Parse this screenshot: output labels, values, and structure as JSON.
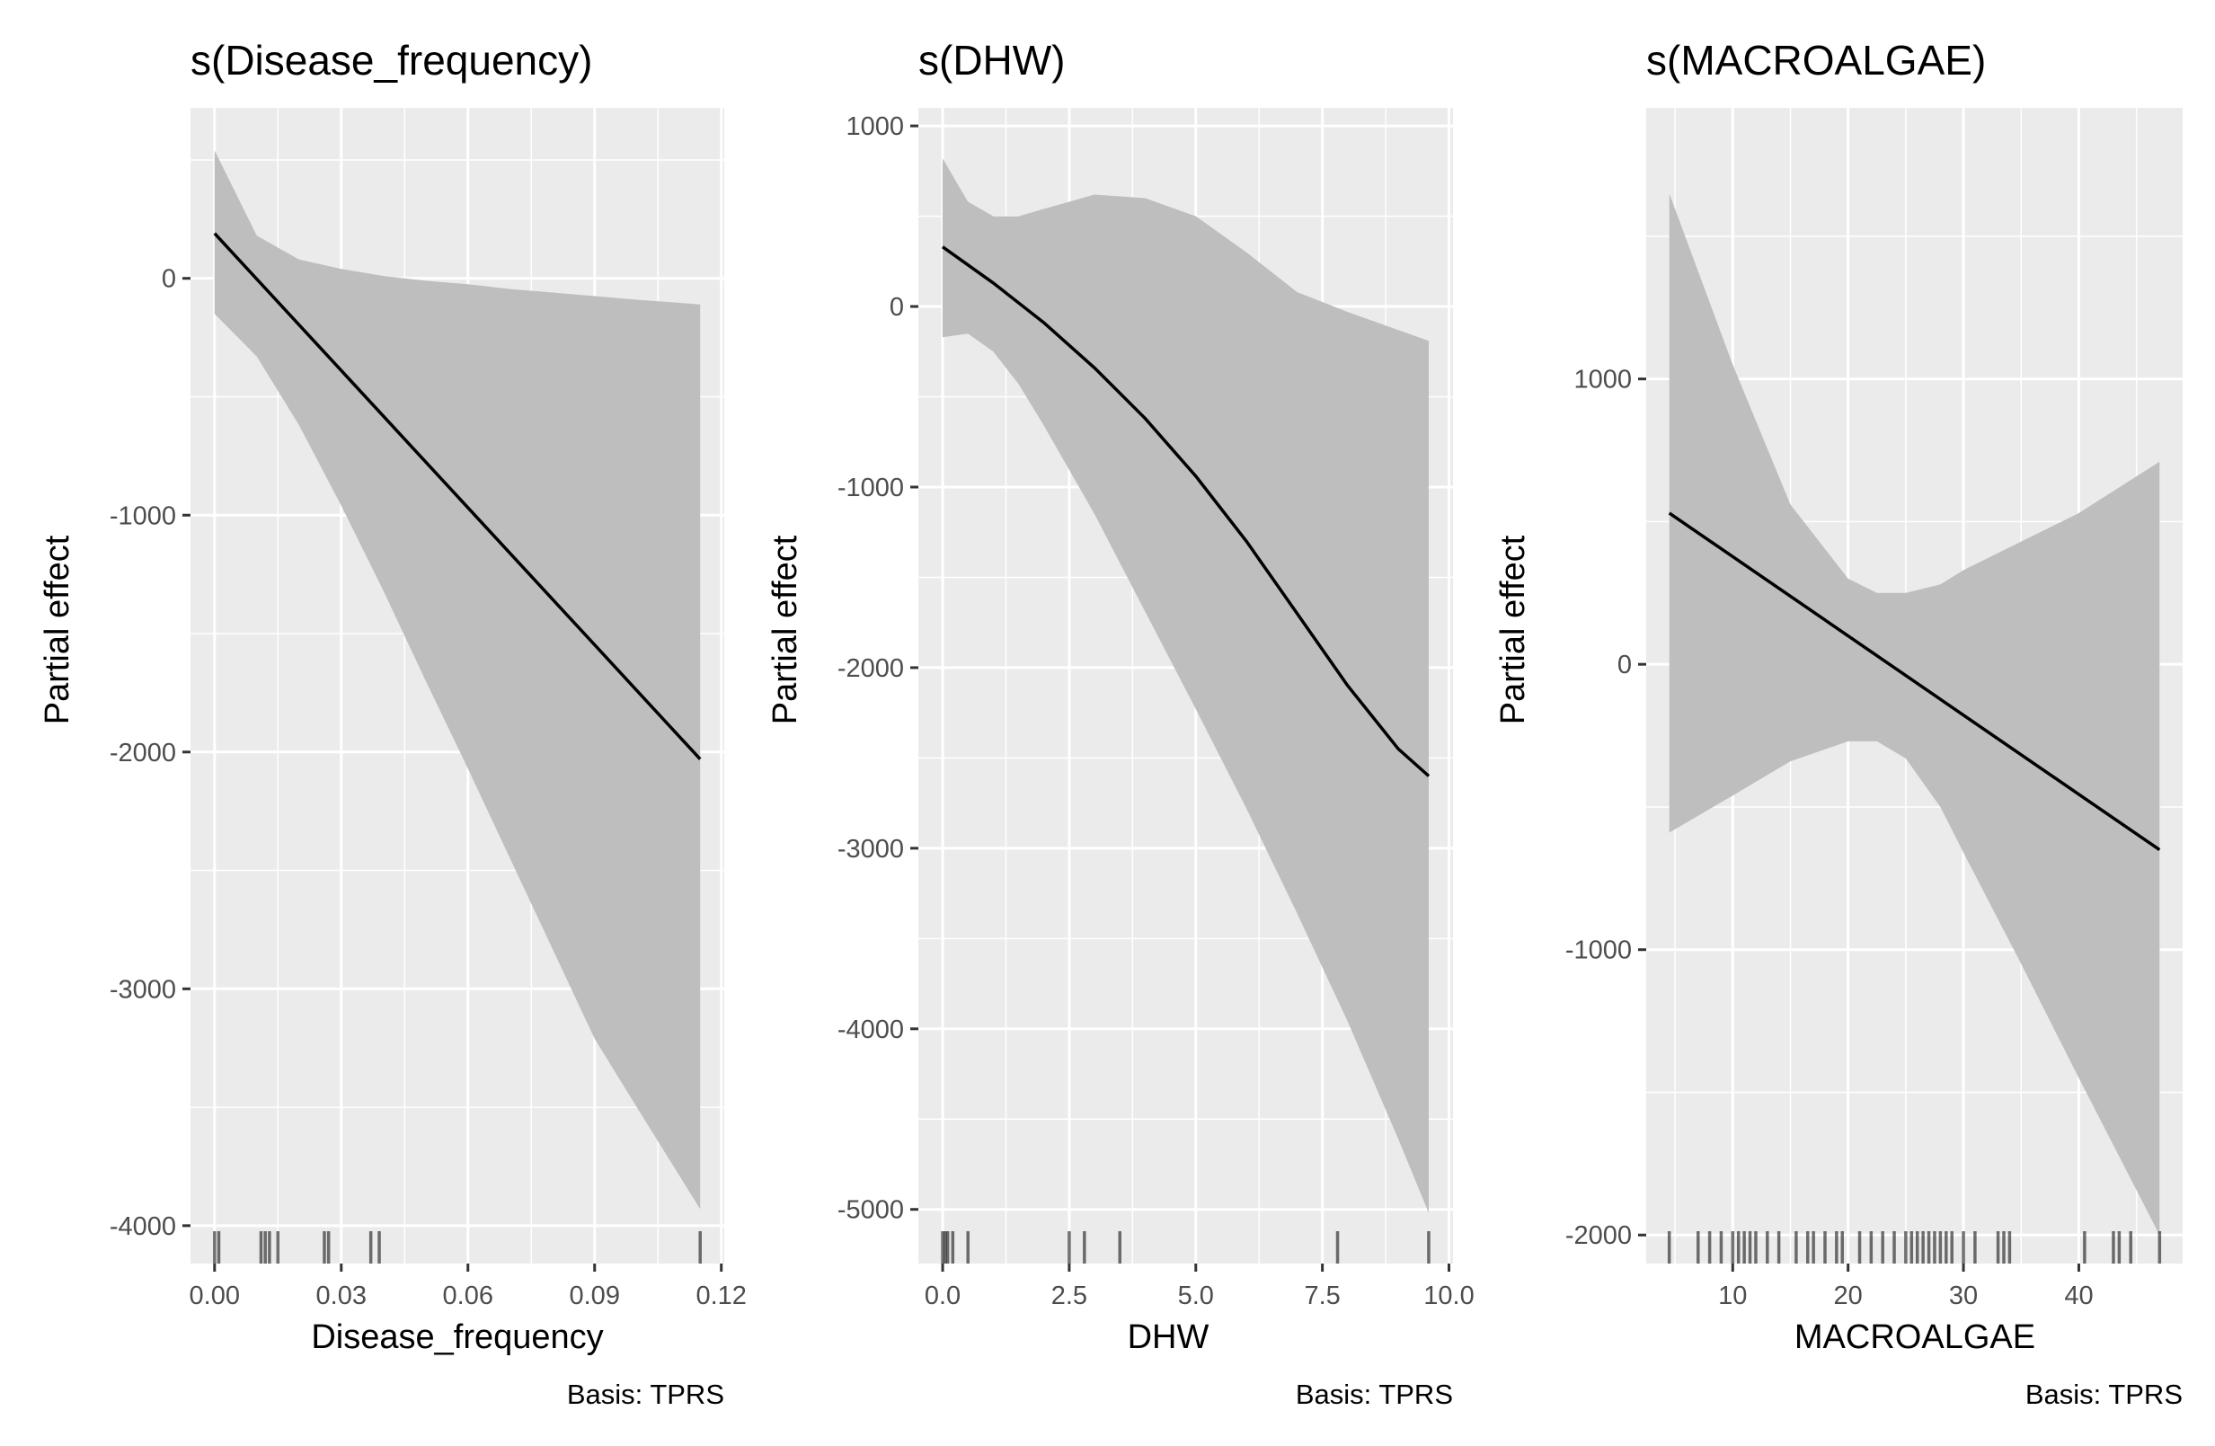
{
  "chart_data": [
    {
      "type": "line",
      "title": "s(Disease_frequency)",
      "xlabel": "Disease_frequency",
      "ylabel": "Partial effect",
      "caption": "Basis: TPRS",
      "xlim": [
        -0.0057,
        0.1207
      ],
      "ylim": [
        -4160,
        720
      ],
      "x_ticks": [
        0.0,
        0.03,
        0.06,
        0.09,
        0.12
      ],
      "x_tick_labels": [
        "0.00",
        "0.03",
        "0.06",
        "0.09",
        "0.12"
      ],
      "y_ticks": [
        -4000,
        -3000,
        -2000,
        -1000,
        0
      ],
      "y_tick_labels": [
        "-4000",
        "-3000",
        "-2000",
        "-1000",
        "0"
      ],
      "grid": true,
      "series": [
        {
          "x": [
            0.0,
            0.115
          ],
          "y": [
            190,
            -2030
          ]
        }
      ],
      "ribbon": {
        "x": [
          0.0,
          0.01,
          0.02,
          0.03,
          0.04,
          0.05,
          0.06,
          0.07,
          0.08,
          0.09,
          0.1,
          0.115
        ],
        "upper": [
          540,
          180,
          80,
          40,
          10,
          -10,
          -25,
          -45,
          -60,
          -75,
          -90,
          -110
        ],
        "lower": [
          -150,
          -330,
          -620,
          -960,
          -1320,
          -1700,
          -2070,
          -2450,
          -2830,
          -3210,
          -3500,
          -3930
        ]
      },
      "rug": [
        0.0,
        0.001,
        0.011,
        0.012,
        0.013,
        0.015,
        0.026,
        0.027,
        0.037,
        0.039,
        0.115
      ]
    },
    {
      "type": "line",
      "title": "s(DHW)",
      "xlabel": "DHW",
      "ylabel": "Partial effect",
      "caption": "Basis: TPRS",
      "xlim": [
        -0.48,
        10.08
      ],
      "ylim": [
        -5300,
        1100
      ],
      "x_ticks": [
        0.0,
        2.5,
        5.0,
        7.5,
        10.0
      ],
      "x_tick_labels": [
        "0.0",
        "2.5",
        "5.0",
        "7.5",
        "10.0"
      ],
      "y_ticks": [
        -5000,
        -4000,
        -3000,
        -2000,
        -1000,
        0,
        1000
      ],
      "y_tick_labels": [
        "-5000",
        "-4000",
        "-3000",
        "-2000",
        "-1000",
        "0",
        "1000"
      ],
      "grid": true,
      "series": [
        {
          "x": [
            0.0,
            1.0,
            2.0,
            3.0,
            4.0,
            5.0,
            6.0,
            7.0,
            8.0,
            9.0,
            9.6
          ],
          "y": [
            330,
            130,
            -90,
            -340,
            -620,
            -940,
            -1300,
            -1700,
            -2100,
            -2450,
            -2600
          ]
        }
      ],
      "ribbon": {
        "x": [
          0.0,
          0.5,
          1.0,
          1.5,
          2.0,
          3.0,
          4.0,
          5.0,
          6.0,
          7.0,
          8.0,
          9.0,
          9.6
        ],
        "upper": [
          820,
          580,
          500,
          500,
          540,
          620,
          600,
          500,
          300,
          80,
          -30,
          -130,
          -190
        ],
        "lower": [
          -170,
          -150,
          -250,
          -430,
          -660,
          -1150,
          -1690,
          -2230,
          -2780,
          -3360,
          -3960,
          -4610,
          -5020
        ]
      },
      "rug": [
        0.0,
        0.05,
        0.1,
        0.2,
        0.5,
        2.5,
        2.8,
        3.5,
        7.8,
        9.6
      ]
    },
    {
      "type": "line",
      "title": "s(MACROALGAE)",
      "xlabel": "MACROALGAE",
      "ylabel": "Partial effect",
      "caption": "Basis: TPRS",
      "xlim": [
        2.5,
        49.0
      ],
      "ylim": [
        -2100,
        1950
      ],
      "x_ticks": [
        10,
        20,
        30,
        40
      ],
      "x_tick_labels": [
        "10",
        "20",
        "30",
        "40"
      ],
      "y_ticks": [
        -2000,
        -1000,
        0,
        1000
      ],
      "y_tick_labels": [
        "-2000",
        "-1000",
        "0",
        "1000"
      ],
      "grid": true,
      "series": [
        {
          "x": [
            4.5,
            47.0
          ],
          "y": [
            530,
            -650
          ]
        }
      ],
      "ribbon": {
        "x": [
          4.5,
          10,
          15,
          20,
          22.5,
          25,
          28,
          30,
          35,
          40,
          47
        ],
        "upper": [
          1650,
          1050,
          560,
          300,
          250,
          250,
          280,
          330,
          430,
          530,
          710
        ],
        "lower": [
          -590,
          -460,
          -340,
          -270,
          -270,
          -330,
          -500,
          -660,
          -1050,
          -1450,
          -2000
        ]
      },
      "rug": [
        4.5,
        7,
        8,
        9,
        10,
        10.5,
        11,
        11.5,
        12,
        13,
        14,
        15.5,
        16.5,
        17,
        18,
        19,
        19.5,
        21,
        22,
        23,
        24,
        25,
        25.5,
        26,
        26.5,
        27,
        27.5,
        28,
        28.5,
        29,
        30,
        31,
        33,
        33.5,
        34,
        40.5,
        43,
        43.5,
        44.5,
        47
      ]
    }
  ]
}
